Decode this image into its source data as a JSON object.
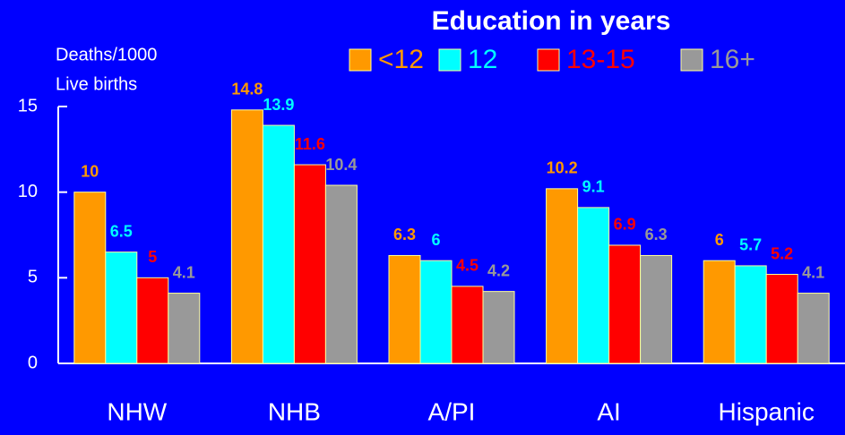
{
  "chart_data": {
    "type": "bar",
    "title": "Education in years",
    "y_label": [
      "Deaths/1000",
      "Live births"
    ],
    "categories": [
      "NHW",
      "NHB",
      "A/PI",
      "AI",
      "Hispanic"
    ],
    "series": [
      {
        "name": "<12",
        "color": "#ff9900",
        "values": [
          10,
          14.8,
          6.3,
          10.2,
          6
        ]
      },
      {
        "name": "12",
        "color": "#00ffff",
        "values": [
          6.5,
          13.9,
          6,
          9.1,
          5.7
        ]
      },
      {
        "name": "13-15",
        "color": "#ff0000",
        "values": [
          5,
          11.6,
          4.5,
          6.9,
          5.2
        ]
      },
      {
        "name": "16+",
        "color": "#999999",
        "values": [
          4.1,
          10.4,
          4.2,
          6.3,
          4.1
        ]
      }
    ],
    "ylim": [
      0,
      15
    ],
    "yticks": [
      0,
      5,
      10,
      15
    ],
    "grid": false,
    "legend": "top"
  }
}
